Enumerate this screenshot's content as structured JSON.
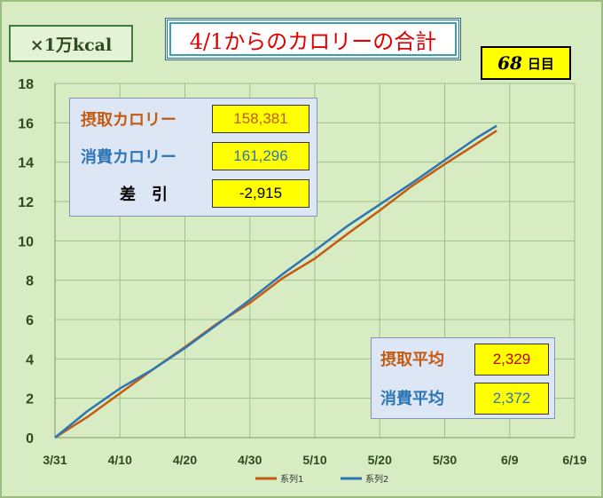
{
  "header": {
    "unit_label": "×1万kcal",
    "title": "4/1からのカロリーの合計",
    "day_count": "68",
    "day_unit": "日目"
  },
  "stats": {
    "intake_label": "摂取カロリー",
    "intake_value": "158,381",
    "burn_label": "消費カロリー",
    "burn_value": "161,296",
    "diff_label": "差　引",
    "diff_value": "-2,915"
  },
  "averages": {
    "intake_label": "摂取平均",
    "intake_value": "2,329",
    "burn_label": "消費平均",
    "burn_value": "2,372"
  },
  "colors": {
    "series1": "#c55a11",
    "series2": "#2e75b6",
    "intake_text": "#c55a11",
    "burn_text": "#2e75b6",
    "intake_value_text": "#c00000",
    "burn_value_text": "#2e75b6",
    "title_text": "#e00000"
  },
  "chart_data": {
    "type": "line",
    "xlabel": "",
    "ylabel": "",
    "ylim": [
      0,
      18
    ],
    "yticks": [
      0,
      2,
      4,
      6,
      8,
      10,
      12,
      14,
      16,
      18
    ],
    "xticks": [
      "3/31",
      "4/10",
      "4/20",
      "4/30",
      "5/10",
      "5/20",
      "5/30",
      "6/9",
      "6/19"
    ],
    "xlim": [
      "3/31",
      "6/19"
    ],
    "grid": true,
    "legend": "bottom",
    "x": [
      "3/31",
      "4/5",
      "4/10",
      "4/15",
      "4/20",
      "4/25",
      "4/30",
      "5/5",
      "5/10",
      "5/15",
      "5/20",
      "5/25",
      "5/30",
      "6/4",
      "6/7"
    ],
    "series": [
      {
        "name": "系列1",
        "color": "#c55a11",
        "values": [
          0,
          1.05,
          2.25,
          3.45,
          4.6,
          5.8,
          6.85,
          8.1,
          9.1,
          10.35,
          11.55,
          12.8,
          13.9,
          14.95,
          15.6
        ]
      },
      {
        "name": "系列2",
        "color": "#2e75b6",
        "values": [
          0,
          1.35,
          2.5,
          3.45,
          4.55,
          5.75,
          7.0,
          8.3,
          9.5,
          10.75,
          11.85,
          12.95,
          14.1,
          15.25,
          15.85
        ]
      }
    ]
  }
}
